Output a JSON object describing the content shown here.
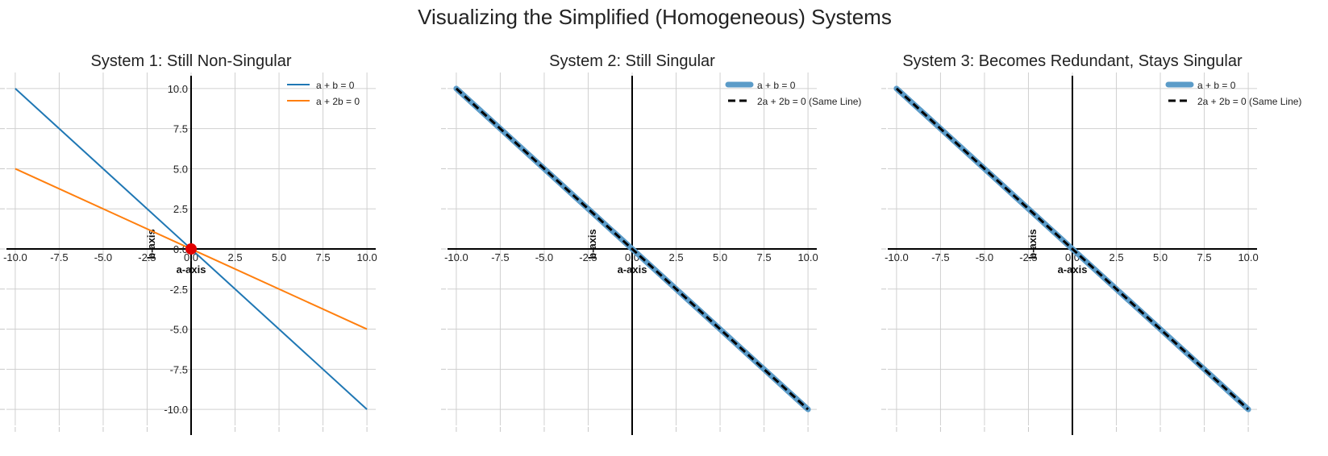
{
  "figure_title": "Visualizing the Simplified (Homogeneous) Systems",
  "chart_data": [
    {
      "type": "line",
      "title": "System 1: Still Non-Singular",
      "xlabel": "a-axis",
      "ylabel": "b-axis",
      "xlim": [
        -10.5,
        10.5
      ],
      "ylim": [
        -11,
        11
      ],
      "xticks": [
        "-10.0",
        "-7.5",
        "-5.0",
        "-2.5",
        "0.0",
        "2.5",
        "5.0",
        "7.5",
        "10.0"
      ],
      "yticks": [
        "-10.0",
        "-7.5",
        "-5.0",
        "-2.5",
        "0.0",
        "2.5",
        "5.0",
        "7.5",
        "10.0"
      ],
      "grid": true,
      "legend_position": "top-right",
      "series": [
        {
          "name": "a + b = 0",
          "x": [
            -10,
            10
          ],
          "y": [
            10,
            -10
          ],
          "color": "#1f77b4",
          "style": "solid"
        },
        {
          "name": "a + 2b = 0",
          "x": [
            -10,
            10
          ],
          "y": [
            5,
            -5
          ],
          "color": "#ff7f0e",
          "style": "solid"
        }
      ],
      "points": [
        {
          "x": 0,
          "y": 0,
          "color": "#e00000"
        }
      ]
    },
    {
      "type": "line",
      "title": "System 2: Still Singular",
      "xlabel": "a-axis",
      "ylabel": "b-axis",
      "xlim": [
        -10.5,
        10.5
      ],
      "ylim": [
        -11,
        11
      ],
      "xticks": [
        "-10.0",
        "-7.5",
        "-5.0",
        "-2.5",
        "0.0",
        "2.5",
        "5.0",
        "7.5",
        "10.0"
      ],
      "yticks": [],
      "grid": true,
      "legend_position": "top-right",
      "series": [
        {
          "name": "a + b = 0",
          "x": [
            -10,
            10
          ],
          "y": [
            10,
            -10
          ],
          "color": "#5b9bc8",
          "style": "thick"
        },
        {
          "name": "2a + 2b = 0 (Same Line)",
          "x": [
            -10,
            10
          ],
          "y": [
            10,
            -10
          ],
          "color": "#000000",
          "style": "dashed"
        }
      ],
      "points": []
    },
    {
      "type": "line",
      "title": "System 3: Becomes Redundant, Stays Singular",
      "xlabel": "a-axis",
      "ylabel": "b-axis",
      "xlim": [
        -10.5,
        10.5
      ],
      "ylim": [
        -11,
        11
      ],
      "xticks": [
        "-10.0",
        "-7.5",
        "-5.0",
        "-2.5",
        "0.0",
        "2.5",
        "5.0",
        "7.5",
        "10.0"
      ],
      "yticks": [],
      "grid": true,
      "legend_position": "top-right",
      "series": [
        {
          "name": "a + b = 0",
          "x": [
            -10,
            10
          ],
          "y": [
            10,
            -10
          ],
          "color": "#5b9bc8",
          "style": "thick"
        },
        {
          "name": "2a + 2b = 0 (Same Line)",
          "x": [
            -10,
            10
          ],
          "y": [
            10,
            -10
          ],
          "color": "#000000",
          "style": "dashed"
        }
      ],
      "points": []
    }
  ]
}
